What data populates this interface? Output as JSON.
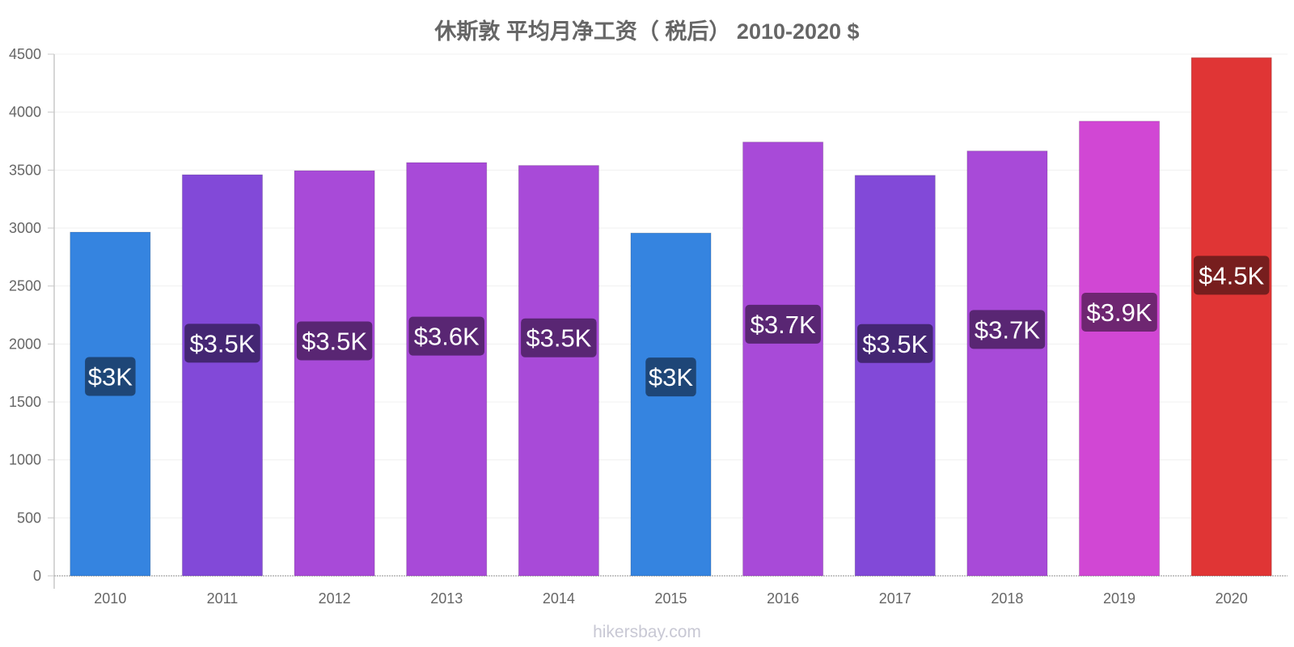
{
  "chart_data": {
    "type": "bar",
    "title": "休斯敦 平均月净工资（ 税后） 2010-2020 $",
    "xlabel": "",
    "ylabel": "",
    "categories": [
      "2010",
      "2011",
      "2012",
      "2013",
      "2014",
      "2015",
      "2016",
      "2017",
      "2018",
      "2019",
      "2020"
    ],
    "values": [
      2965,
      3460,
      3495,
      3565,
      3540,
      2957,
      3742,
      3455,
      3665,
      3922,
      4470
    ],
    "data_labels": [
      "$3K",
      "$3.5K",
      "$3.5K",
      "$3.6K",
      "$3.5K",
      "$3K",
      "$3.7K",
      "$3.5K",
      "$3.7K",
      "$3.9K",
      "$4.5K"
    ],
    "bar_colors": [
      "#3584e0",
      "#8249d8",
      "#a84ad8",
      "#a84ad8",
      "#a84ad8",
      "#3584e0",
      "#a84ad8",
      "#8249d8",
      "#a84ad8",
      "#d147d4",
      "#e03535"
    ],
    "label_bg_colors": [
      "#1e4677",
      "#442673",
      "#592673",
      "#592673",
      "#592673",
      "#1e4677",
      "#592673",
      "#442673",
      "#592673",
      "#6e2671",
      "#771e1e"
    ],
    "ylim": [
      0,
      4500
    ],
    "yticks": [
      0,
      500,
      1000,
      1500,
      2000,
      2500,
      3000,
      3500,
      4000,
      4500
    ],
    "grid": true,
    "legend": "none"
  },
  "watermark": "hikersbay.com"
}
